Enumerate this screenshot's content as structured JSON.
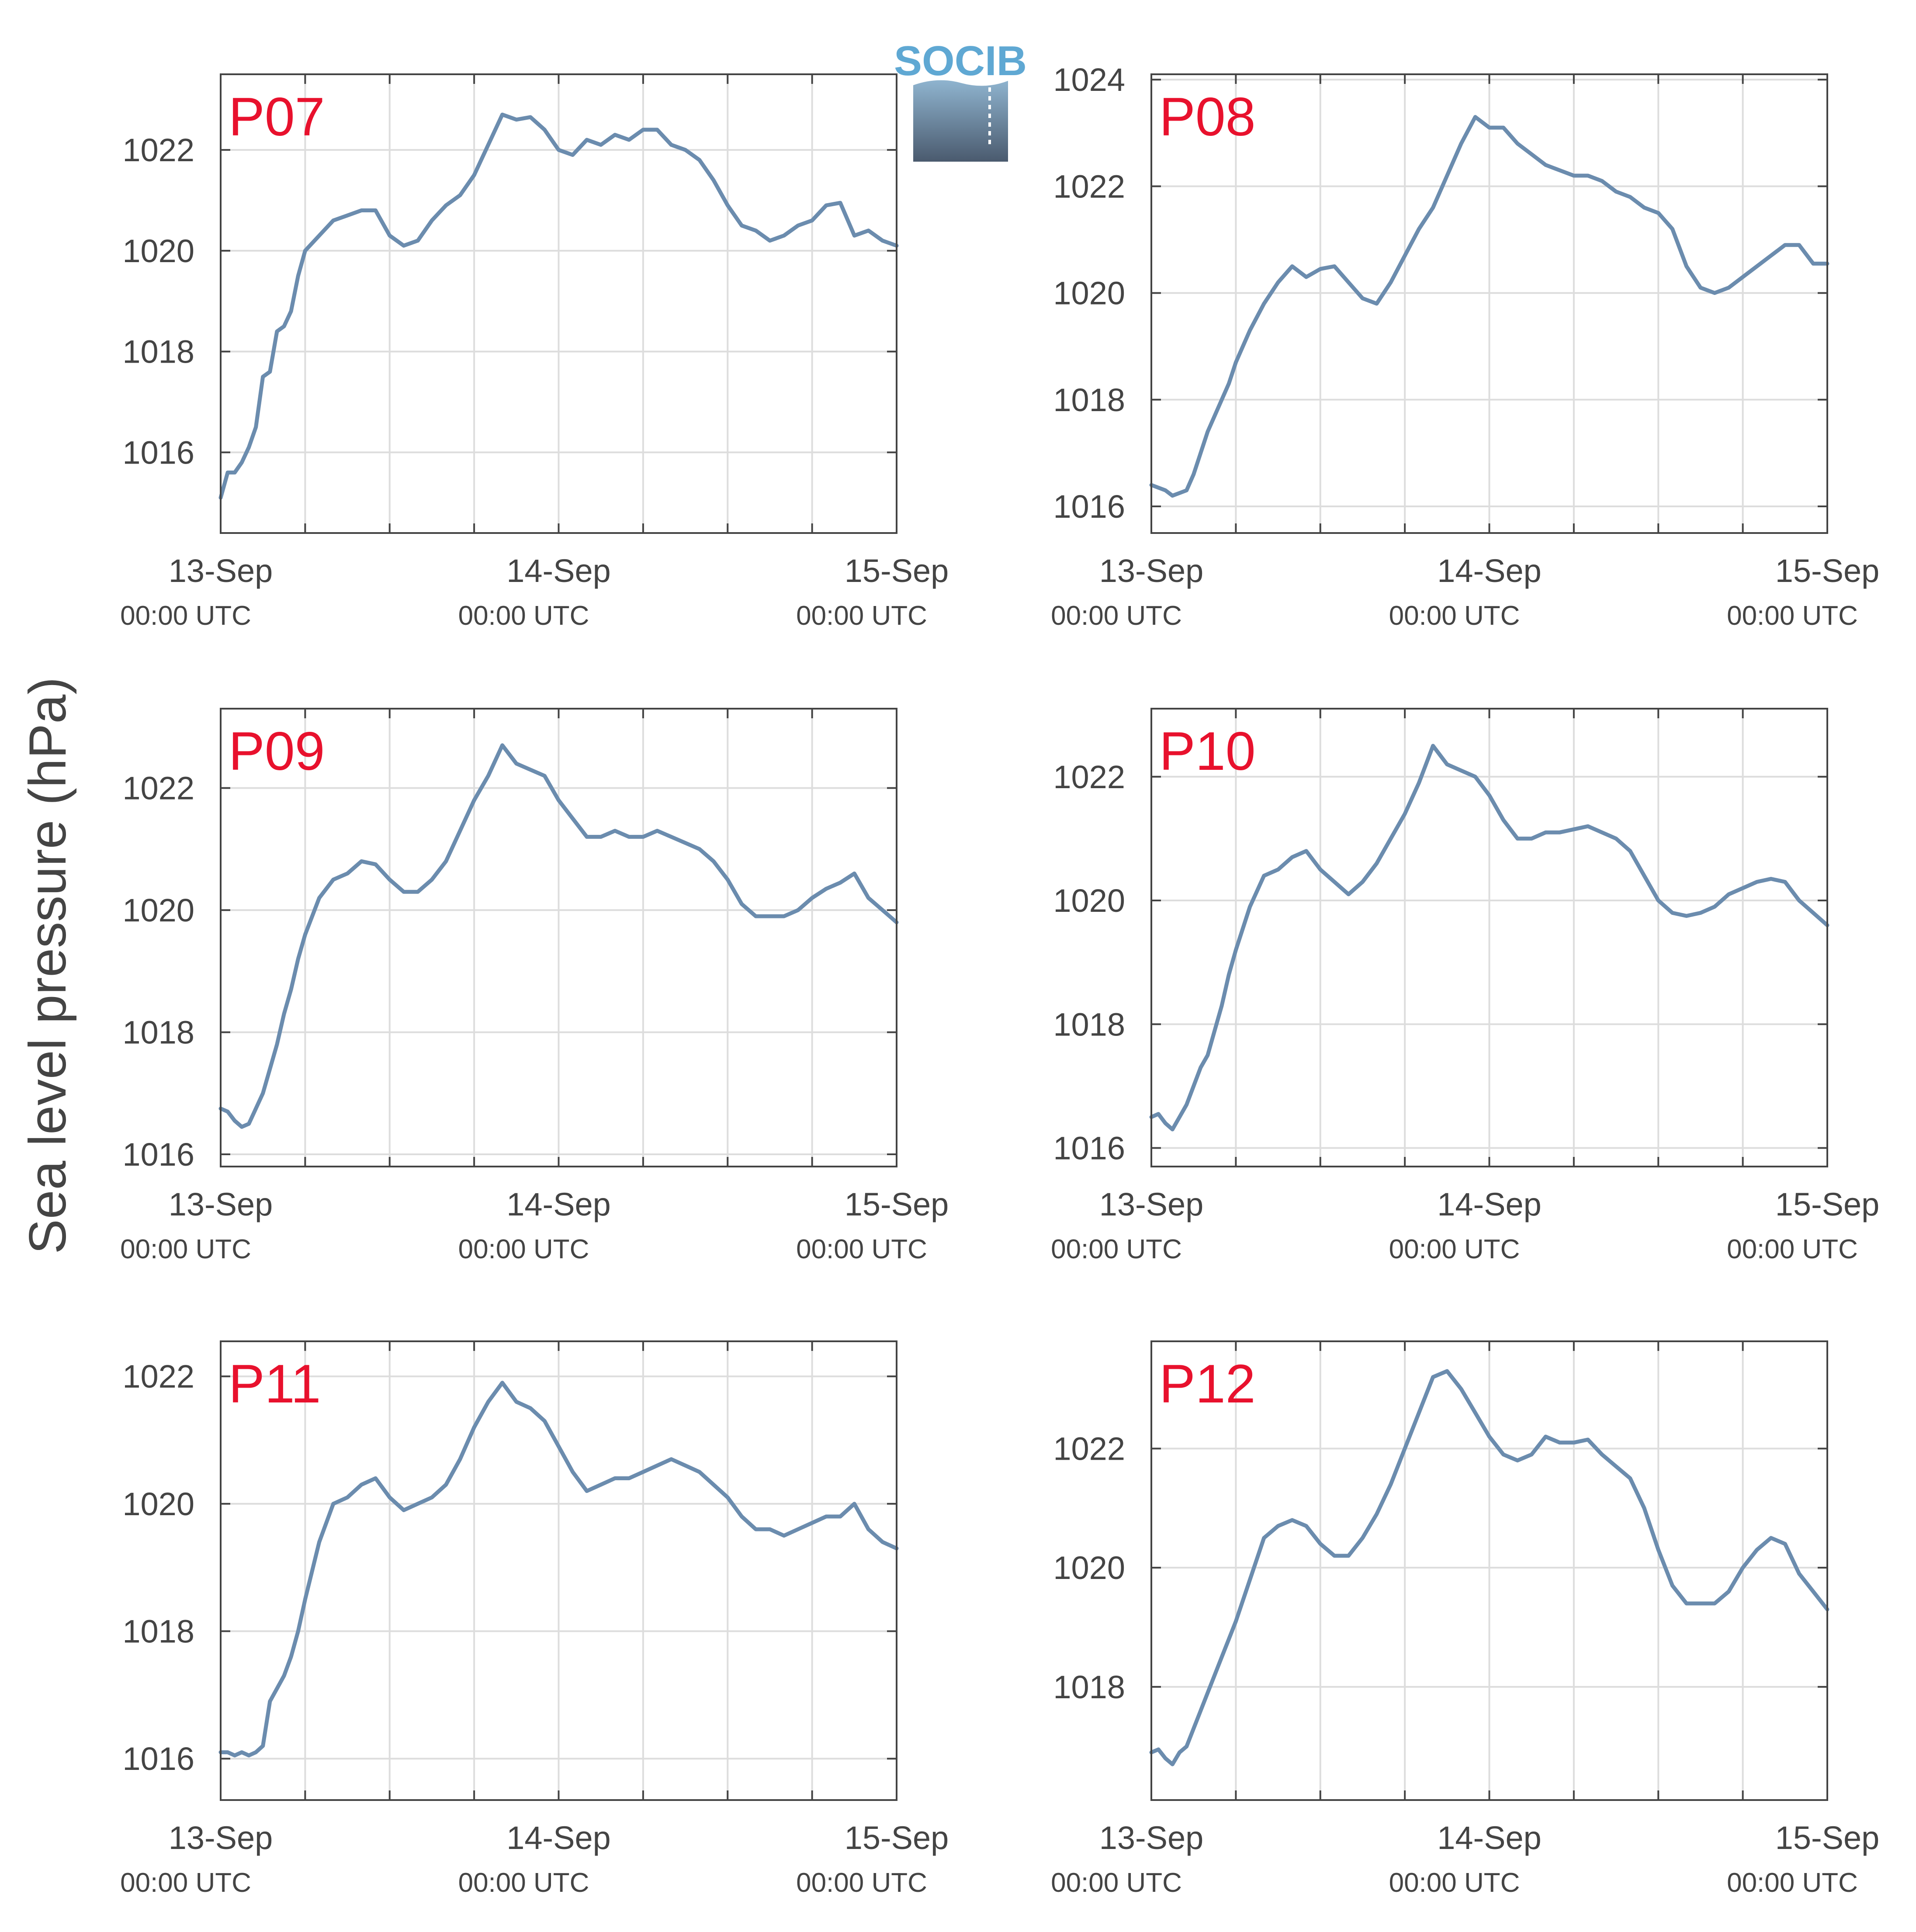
{
  "figure": {
    "ylabel": "Sea level pressure (hPa)",
    "logo_text": "SOCIB"
  },
  "colors": {
    "line": "#6b8cae",
    "panel_label": "#e8112d",
    "axis": "#444444",
    "grid": "#dddddd",
    "logo_text": "#5fa8d3",
    "logo_top": "#8fb4cf",
    "logo_bottom": "#4a5a6e"
  },
  "x_ticks": [
    {
      "day": "13-Sep",
      "time": "00:00 UTC"
    },
    {
      "day": "14-Sep",
      "time": "00:00 UTC"
    },
    {
      "day": "15-Sep",
      "time": "00:00 UTC"
    }
  ],
  "chart_data": [
    {
      "type": "line",
      "label": "P07",
      "xlim": [
        0,
        48
      ],
      "ylim": [
        1014.4,
        1023.5
      ],
      "yticks": [
        1016,
        1018,
        1020,
        1022
      ],
      "grid": true,
      "x": [
        0,
        0.5,
        1,
        1.5,
        2,
        2.5,
        3,
        3.5,
        4,
        4.5,
        5,
        5.5,
        6,
        7,
        8,
        9,
        10,
        11,
        12,
        13,
        14,
        15,
        16,
        17,
        18,
        19,
        20,
        21,
        22,
        23,
        24,
        25,
        26,
        27,
        28,
        29,
        30,
        31,
        32,
        33,
        34,
        35,
        36,
        37,
        38,
        39,
        40,
        41,
        42,
        43,
        44,
        45,
        46,
        47,
        48
      ],
      "y": [
        1015.1,
        1015.6,
        1015.6,
        1015.8,
        1016.1,
        1016.5,
        1017.5,
        1017.6,
        1018.4,
        1018.5,
        1018.8,
        1019.5,
        1020.0,
        1020.3,
        1020.6,
        1020.7,
        1020.8,
        1020.8,
        1020.3,
        1020.1,
        1020.2,
        1020.6,
        1020.9,
        1021.1,
        1021.5,
        1022.1,
        1022.7,
        1022.6,
        1022.65,
        1022.4,
        1022.0,
        1021.9,
        1022.2,
        1022.1,
        1022.3,
        1022.2,
        1022.4,
        1022.4,
        1022.1,
        1022.0,
        1021.8,
        1021.4,
        1020.9,
        1020.5,
        1020.4,
        1020.2,
        1020.3,
        1020.5,
        1020.6,
        1020.9,
        1020.95,
        1020.3,
        1020.4,
        1020.2,
        1020.1
      ]
    },
    {
      "type": "line",
      "label": "P08",
      "xlim": [
        0,
        48
      ],
      "ylim": [
        1015.5,
        1024.1
      ],
      "yticks": [
        1016,
        1018,
        1020,
        1022,
        1024
      ],
      "grid": true,
      "x": [
        0,
        0.5,
        1,
        1.5,
        2,
        2.5,
        3,
        3.5,
        4,
        4.5,
        5,
        5.5,
        6,
        7,
        8,
        9,
        10,
        11,
        12,
        13,
        14,
        15,
        16,
        17,
        18,
        19,
        20,
        21,
        22,
        23,
        24,
        25,
        26,
        27,
        28,
        29,
        30,
        31,
        32,
        33,
        34,
        35,
        36,
        37,
        38,
        39,
        40,
        41,
        42,
        43,
        44,
        45,
        46,
        47,
        48
      ],
      "y": [
        1016.4,
        1016.35,
        1016.3,
        1016.2,
        1016.25,
        1016.3,
        1016.6,
        1017.0,
        1017.4,
        1017.7,
        1018.0,
        1018.3,
        1018.7,
        1019.3,
        1019.8,
        1020.2,
        1020.5,
        1020.3,
        1020.45,
        1020.5,
        1020.2,
        1019.9,
        1019.8,
        1020.2,
        1020.7,
        1021.2,
        1021.6,
        1022.2,
        1022.8,
        1023.3,
        1023.1,
        1023.1,
        1022.8,
        1022.6,
        1022.4,
        1022.3,
        1022.2,
        1022.2,
        1022.1,
        1021.9,
        1021.8,
        1021.6,
        1021.5,
        1021.2,
        1020.5,
        1020.1,
        1020.0,
        1020.1,
        1020.3,
        1020.5,
        1020.7,
        1020.9,
        1020.9,
        1020.55,
        1020.55
      ]
    },
    {
      "type": "line",
      "label": "P09",
      "xlim": [
        0,
        48
      ],
      "ylim": [
        1015.8,
        1023.3
      ],
      "yticks": [
        1016,
        1018,
        1020,
        1022
      ],
      "grid": true,
      "x": [
        0,
        0.5,
        1,
        1.5,
        2,
        2.5,
        3,
        3.5,
        4,
        4.5,
        5,
        5.5,
        6,
        7,
        8,
        9,
        10,
        11,
        12,
        13,
        14,
        15,
        16,
        17,
        18,
        19,
        20,
        21,
        22,
        23,
        24,
        25,
        26,
        27,
        28,
        29,
        30,
        31,
        32,
        33,
        34,
        35,
        36,
        37,
        38,
        39,
        40,
        41,
        42,
        43,
        44,
        45,
        46,
        47,
        48
      ],
      "y": [
        1016.75,
        1016.7,
        1016.55,
        1016.45,
        1016.5,
        1016.75,
        1017.0,
        1017.4,
        1017.8,
        1018.3,
        1018.7,
        1019.2,
        1019.6,
        1020.2,
        1020.5,
        1020.6,
        1020.8,
        1020.75,
        1020.5,
        1020.3,
        1020.3,
        1020.5,
        1020.8,
        1021.3,
        1021.8,
        1022.2,
        1022.7,
        1022.4,
        1022.3,
        1022.2,
        1021.8,
        1021.5,
        1021.2,
        1021.2,
        1021.3,
        1021.2,
        1021.2,
        1021.3,
        1021.2,
        1021.1,
        1021.0,
        1020.8,
        1020.5,
        1020.1,
        1019.9,
        1019.9,
        1019.9,
        1020.0,
        1020.2,
        1020.35,
        1020.45,
        1020.6,
        1020.2,
        1020.0,
        1019.8
      ]
    },
    {
      "type": "line",
      "label": "P10",
      "xlim": [
        0,
        48
      ],
      "ylim": [
        1015.7,
        1023.1
      ],
      "yticks": [
        1016,
        1018,
        1020,
        1022
      ],
      "grid": true,
      "x": [
        0,
        0.5,
        1,
        1.5,
        2,
        2.5,
        3,
        3.5,
        4,
        4.5,
        5,
        5.5,
        6,
        7,
        8,
        9,
        10,
        11,
        12,
        13,
        14,
        15,
        16,
        17,
        18,
        19,
        20,
        21,
        22,
        23,
        24,
        25,
        26,
        27,
        28,
        29,
        30,
        31,
        32,
        33,
        34,
        35,
        36,
        37,
        38,
        39,
        40,
        41,
        42,
        43,
        44,
        45,
        46,
        47,
        48
      ],
      "y": [
        1016.5,
        1016.55,
        1016.4,
        1016.3,
        1016.5,
        1016.7,
        1017.0,
        1017.3,
        1017.5,
        1017.9,
        1018.3,
        1018.8,
        1019.2,
        1019.9,
        1020.4,
        1020.5,
        1020.7,
        1020.8,
        1020.5,
        1020.3,
        1020.1,
        1020.3,
        1020.6,
        1021.0,
        1021.4,
        1021.9,
        1022.5,
        1022.2,
        1022.1,
        1022.0,
        1021.7,
        1021.3,
        1021.0,
        1021.0,
        1021.1,
        1021.1,
        1021.15,
        1021.2,
        1021.1,
        1021.0,
        1020.8,
        1020.4,
        1020.0,
        1019.8,
        1019.75,
        1019.8,
        1019.9,
        1020.1,
        1020.2,
        1020.3,
        1020.35,
        1020.3,
        1020.0,
        1019.8,
        1019.6
      ]
    },
    {
      "type": "line",
      "label": "P11",
      "xlim": [
        0,
        48
      ],
      "ylim": [
        1015.35,
        1022.55
      ],
      "yticks": [
        1016,
        1018,
        1020,
        1022
      ],
      "grid": true,
      "x": [
        0,
        0.5,
        1,
        1.5,
        2,
        2.5,
        3,
        3.5,
        4,
        4.5,
        5,
        5.5,
        6,
        7,
        8,
        9,
        10,
        11,
        12,
        13,
        14,
        15,
        16,
        17,
        18,
        19,
        20,
        21,
        22,
        23,
        24,
        25,
        26,
        27,
        28,
        29,
        30,
        31,
        32,
        33,
        34,
        35,
        36,
        37,
        38,
        39,
        40,
        41,
        42,
        43,
        44,
        45,
        46,
        47,
        48
      ],
      "y": [
        1016.1,
        1016.1,
        1016.05,
        1016.1,
        1016.05,
        1016.1,
        1016.2,
        1016.9,
        1017.1,
        1017.3,
        1017.6,
        1018.0,
        1018.5,
        1019.4,
        1020.0,
        1020.1,
        1020.3,
        1020.4,
        1020.1,
        1019.9,
        1020.0,
        1020.1,
        1020.3,
        1020.7,
        1021.2,
        1021.6,
        1021.9,
        1021.6,
        1021.5,
        1021.3,
        1020.9,
        1020.5,
        1020.2,
        1020.3,
        1020.4,
        1020.4,
        1020.5,
        1020.6,
        1020.7,
        1020.6,
        1020.5,
        1020.3,
        1020.1,
        1019.8,
        1019.6,
        1019.6,
        1019.5,
        1019.6,
        1019.7,
        1019.8,
        1019.8,
        1020.0,
        1019.6,
        1019.4,
        1019.3
      ]
    },
    {
      "type": "line",
      "label": "P12",
      "xlim": [
        0,
        48
      ],
      "ylim": [
        1016.1,
        1023.8
      ],
      "yticks": [
        1018,
        1020,
        1022
      ],
      "grid": true,
      "x": [
        0,
        0.5,
        1,
        1.5,
        2,
        2.5,
        3,
        3.5,
        4,
        4.5,
        5,
        5.5,
        6,
        7,
        8,
        9,
        10,
        11,
        12,
        13,
        14,
        15,
        16,
        17,
        18,
        19,
        20,
        21,
        22,
        23,
        24,
        25,
        26,
        27,
        28,
        29,
        30,
        31,
        32,
        33,
        34,
        35,
        36,
        37,
        38,
        39,
        40,
        41,
        42,
        43,
        44,
        45,
        46,
        47,
        48
      ],
      "y": [
        1016.9,
        1016.95,
        1016.8,
        1016.7,
        1016.9,
        1017.0,
        1017.3,
        1017.6,
        1017.9,
        1018.2,
        1018.5,
        1018.8,
        1019.1,
        1019.8,
        1020.5,
        1020.7,
        1020.8,
        1020.7,
        1020.4,
        1020.2,
        1020.2,
        1020.5,
        1020.9,
        1021.4,
        1022.0,
        1022.6,
        1023.2,
        1023.3,
        1023.0,
        1022.6,
        1022.2,
        1021.9,
        1021.8,
        1021.9,
        1022.2,
        1022.1,
        1022.1,
        1022.15,
        1021.9,
        1021.7,
        1021.5,
        1021.0,
        1020.3,
        1019.7,
        1019.4,
        1019.4,
        1019.4,
        1019.6,
        1020.0,
        1020.3,
        1020.5,
        1020.4,
        1019.9,
        1019.6,
        1019.3
      ]
    }
  ]
}
